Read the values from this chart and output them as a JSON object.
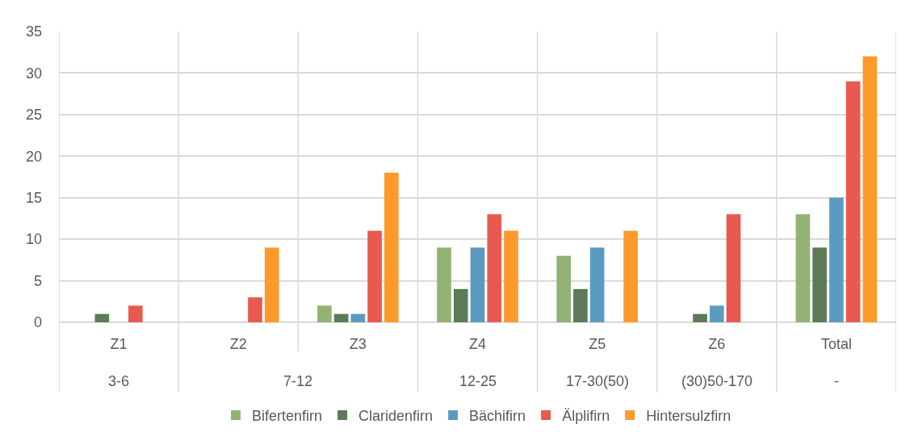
{
  "chart_data": {
    "type": "bar",
    "categories": [
      "Z1",
      "Z2",
      "Z3",
      "Z4",
      "Z5",
      "Z6",
      "Total"
    ],
    "series": [
      {
        "name": "Bifertenfirn",
        "color": "#93b273",
        "values": [
          0,
          0,
          2,
          9,
          8,
          0,
          13
        ]
      },
      {
        "name": "Claridenfirn",
        "color": "#5c7a58",
        "values": [
          1,
          0,
          1,
          4,
          4,
          1,
          9
        ]
      },
      {
        "name": "Bächifirn",
        "color": "#5b9bbf",
        "values": [
          0,
          0,
          1,
          9,
          9,
          2,
          15
        ]
      },
      {
        "name": "Älplifirn",
        "color": "#e8594f",
        "values": [
          2,
          3,
          11,
          13,
          0,
          13,
          29
        ]
      },
      {
        "name": "Hintersulzfirn",
        "color": "#fd9a2b",
        "values": [
          0,
          9,
          18,
          11,
          11,
          0,
          32
        ]
      }
    ],
    "annotations": [
      "3-6",
      "7-12",
      "12-25",
      "17-30(50)",
      "(30)50-170",
      "-"
    ],
    "ylim": [
      0,
      35
    ],
    "yticks": [
      0,
      5,
      10,
      15,
      20,
      25,
      30,
      35
    ],
    "grid": true,
    "legend": "bottom"
  }
}
